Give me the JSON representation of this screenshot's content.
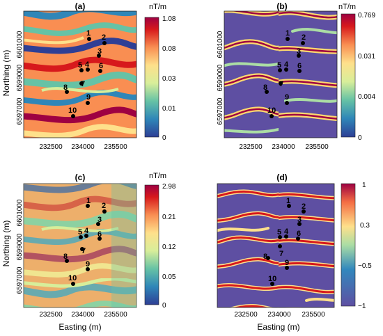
{
  "figure": {
    "panels": [
      {
        "id": "a",
        "title": "(a)",
        "colormap": "rainbow",
        "colorbar": {
          "unit": "nT/m",
          "ticks": [
            "1.08",
            "0.08",
            "0.03",
            "0.01",
            "0"
          ]
        },
        "show_y_axis": true,
        "show_x_axis": false
      },
      {
        "id": "b",
        "title": "(b)",
        "colormap": "mask",
        "colorbar": {
          "unit": "nT/m",
          "ticks": [
            "0.769",
            "0.031",
            "0.004",
            "0"
          ]
        },
        "show_y_axis": true,
        "show_x_axis": false
      },
      {
        "id": "c",
        "title": "(c)",
        "colormap": "rainbow",
        "colorbar": {
          "unit": "nT/m",
          "ticks": [
            "2.98",
            "0.21",
            "0.12",
            "0.05",
            "0"
          ]
        },
        "show_y_axis": true,
        "show_x_axis": true
      },
      {
        "id": "d",
        "title": "(d)",
        "colormap": "binary",
        "colorbar": {
          "unit": "",
          "ticks": [
            "1",
            "0.3",
            "−0.5",
            "−1"
          ]
        },
        "show_y_axis": false,
        "show_x_axis": true
      }
    ],
    "x_axis": {
      "label": "Easting (m)",
      "ticks": [
        "232500",
        "234000",
        "235500"
      ]
    },
    "y_axis": {
      "label": "Northing (m)",
      "ticks": [
        "6601000",
        "6599000",
        "6597000"
      ]
    },
    "points": [
      {
        "label": "1"
      },
      {
        "label": "2"
      },
      {
        "label": "3"
      },
      {
        "label": "4"
      },
      {
        "label": "5"
      },
      {
        "label": "6"
      },
      {
        "label": "7"
      },
      {
        "label": "8"
      },
      {
        "label": "9"
      },
      {
        "label": "10"
      }
    ],
    "colors": {
      "rainbow": [
        "#2e3f95",
        "#2f86b8",
        "#66c2a5",
        "#d8ee9a",
        "#fee08b",
        "#f98e52",
        "#d7191c",
        "#9e0142"
      ],
      "mask_background": "#5e4fa2",
      "mask_ridge": "#fdd96e",
      "mask_core": "#9e0142",
      "point": "#000000"
    }
  }
}
